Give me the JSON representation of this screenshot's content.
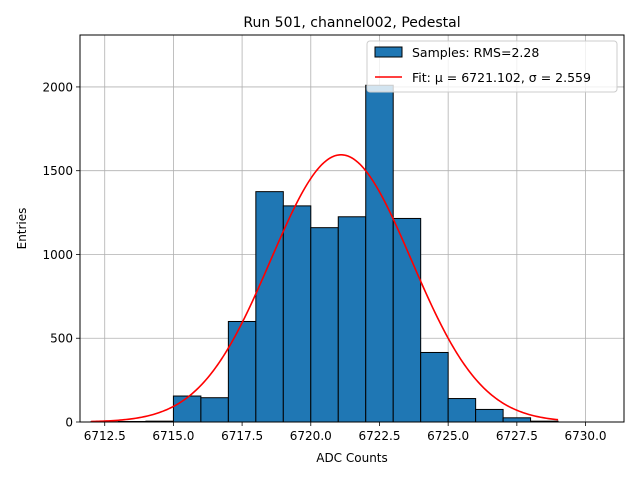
{
  "chart_data": {
    "type": "bar",
    "title": "Run 501, channel002, Pedestal",
    "xlabel": "ADC Counts",
    "ylabel": "Entries",
    "xlim": [
      6711.6,
      6731.4
    ],
    "ylim": [
      0,
      2310
    ],
    "x_ticks": [
      6712.5,
      6715.0,
      6717.5,
      6720.0,
      6722.5,
      6725.0,
      6727.5,
      6730.0
    ],
    "x_tick_labels": [
      "6712.5",
      "6715.0",
      "6717.5",
      "6720.0",
      "6722.5",
      "6725.0",
      "6727.5",
      "6730.0"
    ],
    "y_ticks": [
      0,
      500,
      1000,
      1500,
      2000
    ],
    "y_tick_labels": [
      "0",
      "500",
      "1000",
      "1500",
      "2000"
    ],
    "grid": true,
    "legend_position": "top-right",
    "series": [
      {
        "name": "Samples: RMS=2.28",
        "kind": "histogram",
        "color": "#1f77b4",
        "edge_color": "#000000",
        "bins": [
          {
            "x0": 6712.0,
            "x1": 6713.0,
            "count": 2
          },
          {
            "x0": 6713.0,
            "x1": 6714.0,
            "count": 3
          },
          {
            "x0": 6714.0,
            "x1": 6715.0,
            "count": 5
          },
          {
            "x0": 6715.0,
            "x1": 6716.0,
            "count": 155
          },
          {
            "x0": 6716.0,
            "x1": 6717.0,
            "count": 145
          },
          {
            "x0": 6717.0,
            "x1": 6718.0,
            "count": 600
          },
          {
            "x0": 6718.0,
            "x1": 6719.0,
            "count": 1375
          },
          {
            "x0": 6719.0,
            "x1": 6720.0,
            "count": 1290
          },
          {
            "x0": 6720.0,
            "x1": 6721.0,
            "count": 1160
          },
          {
            "x0": 6721.0,
            "x1": 6722.0,
            "count": 1225
          },
          {
            "x0": 6722.0,
            "x1": 6723.0,
            "count": 2010
          },
          {
            "x0": 6723.0,
            "x1": 6724.0,
            "count": 1215
          },
          {
            "x0": 6724.0,
            "x1": 6725.0,
            "count": 415
          },
          {
            "x0": 6725.0,
            "x1": 6726.0,
            "count": 140
          },
          {
            "x0": 6726.0,
            "x1": 6727.0,
            "count": 75
          },
          {
            "x0": 6727.0,
            "x1": 6728.0,
            "count": 25
          },
          {
            "x0": 6728.0,
            "x1": 6729.0,
            "count": 5
          }
        ]
      },
      {
        "name": "Fit: μ = 6721.102, σ = 2.559",
        "kind": "gaussian-fit",
        "color": "#ff0000",
        "mu": 6721.102,
        "sigma": 2.559,
        "peak": 1595,
        "x_range": [
          6712.0,
          6729.0
        ]
      }
    ]
  }
}
